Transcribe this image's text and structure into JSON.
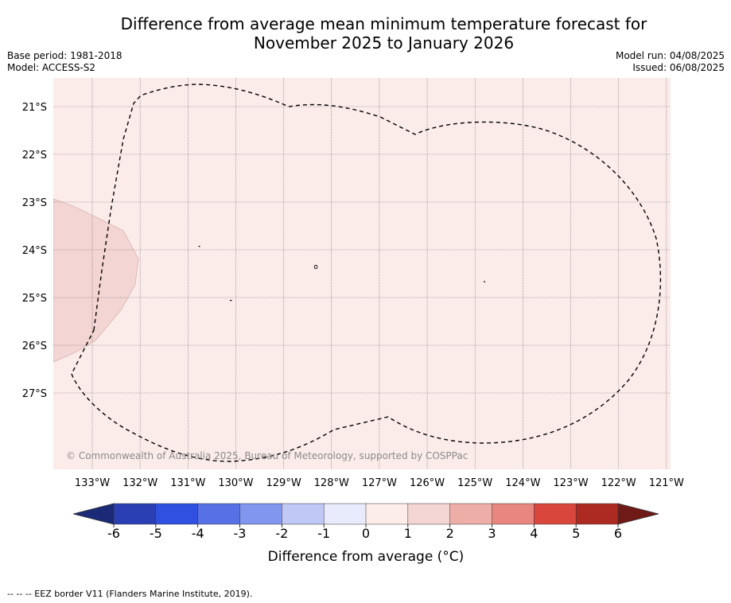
{
  "header": {
    "title_line1": "Difference from average mean minimum temperature forecast for",
    "title_line2": "November 2025 to January 2026",
    "base_period": "Base period: 1981-2018",
    "model": "Model: ACCESS-S2",
    "model_run": "Model run: 04/08/2025",
    "issued": "Issued: 06/08/2025"
  },
  "map": {
    "lat_labels": [
      "21°S",
      "22°S",
      "23°S",
      "24°S",
      "25°S",
      "26°S",
      "27°S"
    ],
    "lon_labels": [
      "133°W",
      "132°W",
      "131°W",
      "130°W",
      "129°W",
      "128°W",
      "127°W",
      "126°W",
      "125°W",
      "124°W",
      "123°W",
      "122°W",
      "121°W"
    ],
    "copyright": "© Commonwealth of Australia 2025, Bureau of Meteorology, supported by COSPPac",
    "background_color": "#fbecea",
    "anomaly_patch_color": "#f3d5d3"
  },
  "colorbar": {
    "ticks": [
      "-6",
      "-5",
      "-4",
      "-3",
      "-2",
      "-1",
      "0",
      "1",
      "2",
      "3",
      "4",
      "5",
      "6"
    ],
    "colors": [
      "#2b3fb4",
      "#2f50e0",
      "#5670e6",
      "#8196ee",
      "#c0c8f5",
      "#e8ebfb",
      "#fcecea",
      "#f3d5d3",
      "#eeaea8",
      "#e8877f",
      "#d9463c",
      "#ad2a22"
    ],
    "low_extend_color": "#1b2a77",
    "high_extend_color": "#6f1a16",
    "label": "Difference from average (°C)"
  },
  "footer": {
    "legend": "--  --  -- EEZ border V11 (Flanders Marine Institute, 2019)."
  }
}
